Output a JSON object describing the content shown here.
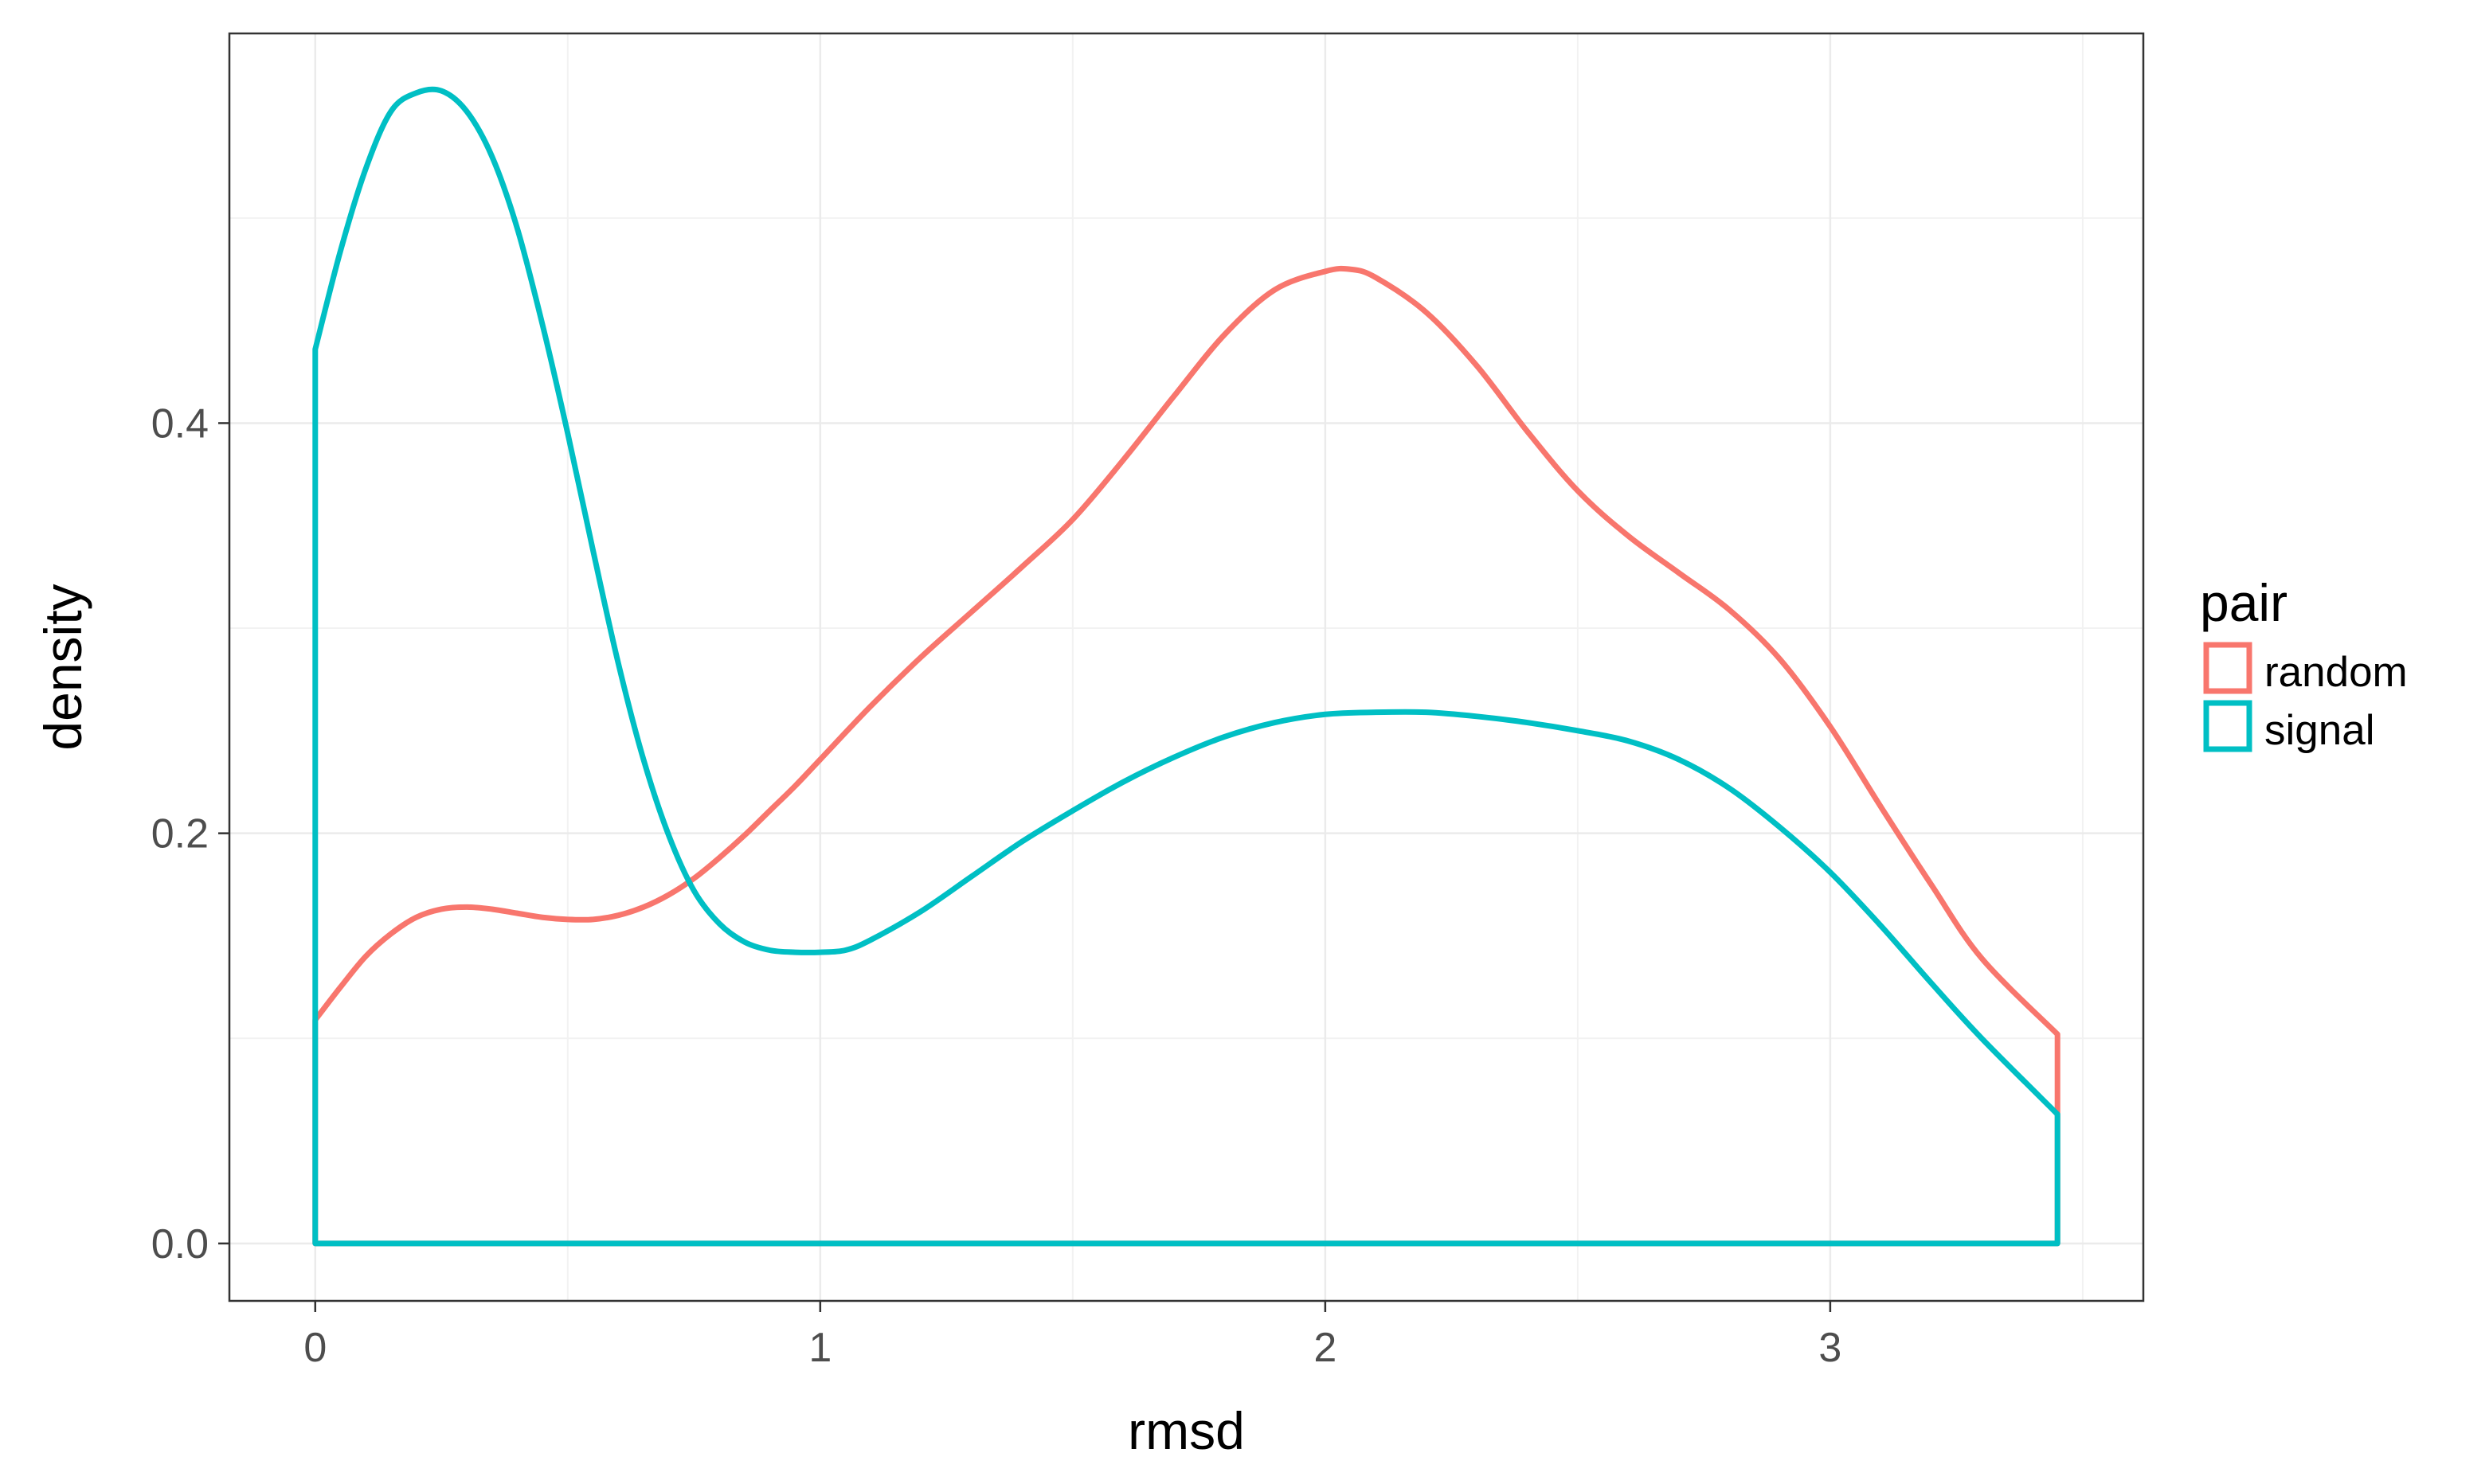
{
  "chart_data": {
    "type": "line",
    "title": "",
    "xlabel": "rmsd",
    "ylabel": "density",
    "xlim": [
      -0.17,
      3.62
    ],
    "ylim": [
      -0.028,
      0.59
    ],
    "x_ticks": [
      0,
      1,
      2,
      3
    ],
    "x_tick_labels": [
      "0",
      "1",
      "2",
      "3"
    ],
    "y_ticks": [
      0.0,
      0.2,
      0.4
    ],
    "y_tick_labels": [
      "0.0",
      "0.2",
      "0.4"
    ],
    "grid": true,
    "theme": "bw",
    "legend": {
      "title": "pair",
      "placement": "right",
      "entries": [
        "random",
        "signal"
      ]
    },
    "series": [
      {
        "name": "random",
        "color": "#F8766D",
        "x": [
          0,
          0.05,
          0.1,
          0.15,
          0.2,
          0.25,
          0.3,
          0.35,
          0.4,
          0.45,
          0.5,
          0.55,
          0.6,
          0.65,
          0.7,
          0.75,
          0.8,
          0.85,
          0.9,
          0.95,
          1.0,
          1.1,
          1.2,
          1.3,
          1.4,
          1.5,
          1.6,
          1.7,
          1.8,
          1.9,
          2.0,
          2.05,
          2.1,
          2.2,
          2.3,
          2.4,
          2.5,
          2.6,
          2.7,
          2.8,
          2.9,
          3.0,
          3.1,
          3.2,
          3.3,
          3.45
        ],
        "y": [
          0.109,
          0.125,
          0.14,
          0.151,
          0.159,
          0.163,
          0.164,
          0.163,
          0.161,
          0.159,
          0.158,
          0.158,
          0.16,
          0.164,
          0.17,
          0.178,
          0.188,
          0.199,
          0.211,
          0.223,
          0.236,
          0.262,
          0.286,
          0.308,
          0.33,
          0.353,
          0.382,
          0.413,
          0.443,
          0.465,
          0.474,
          0.475,
          0.471,
          0.454,
          0.428,
          0.396,
          0.367,
          0.345,
          0.327,
          0.309,
          0.285,
          0.252,
          0.213,
          0.175,
          0.139,
          0.102
        ]
      },
      {
        "name": "signal",
        "color": "#00BFC4",
        "x": [
          0,
          0.05,
          0.1,
          0.15,
          0.2,
          0.25,
          0.3,
          0.35,
          0.4,
          0.45,
          0.5,
          0.55,
          0.6,
          0.65,
          0.7,
          0.75,
          0.8,
          0.85,
          0.9,
          0.95,
          1.0,
          1.05,
          1.1,
          1.2,
          1.3,
          1.4,
          1.5,
          1.6,
          1.7,
          1.8,
          1.9,
          2.0,
          2.1,
          2.2,
          2.3,
          2.4,
          2.5,
          2.6,
          2.7,
          2.8,
          2.9,
          3.0,
          3.1,
          3.2,
          3.3,
          3.45
        ],
        "y": [
          0.436,
          0.484,
          0.524,
          0.552,
          0.561,
          0.562,
          0.552,
          0.53,
          0.495,
          0.448,
          0.395,
          0.338,
          0.283,
          0.236,
          0.199,
          0.172,
          0.156,
          0.147,
          0.143,
          0.142,
          0.142,
          0.143,
          0.148,
          0.162,
          0.179,
          0.196,
          0.211,
          0.225,
          0.237,
          0.247,
          0.254,
          0.258,
          0.259,
          0.259,
          0.257,
          0.254,
          0.25,
          0.245,
          0.236,
          0.222,
          0.203,
          0.181,
          0.155,
          0.127,
          0.1,
          0.063
        ]
      }
    ]
  }
}
